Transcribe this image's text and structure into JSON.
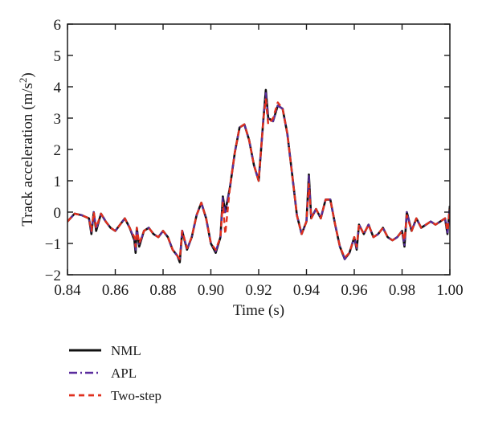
{
  "chart_data": {
    "type": "line",
    "title": "",
    "xlabel": "Time (s)",
    "ylabel": {
      "main": "Track acceleration (m/s",
      "sup": "2",
      "close": ")"
    },
    "xlim": [
      0.84,
      1.0
    ],
    "ylim": [
      -2,
      6
    ],
    "xticks": [
      "0.84",
      "0.86",
      "0.88",
      "0.90",
      "0.92",
      "0.94",
      "0.96",
      "0.98",
      "1.00"
    ],
    "yticks": [
      "−2",
      "−1",
      "0",
      "1",
      "2",
      "3",
      "4",
      "5",
      "6"
    ],
    "xtick_values": [
      0.84,
      0.86,
      0.88,
      0.9,
      0.92,
      0.94,
      0.96,
      0.98,
      1.0
    ],
    "ytick_values": [
      -2,
      -1,
      0,
      1,
      2,
      3,
      4,
      5,
      6
    ],
    "grid": false,
    "legend_position": "below",
    "x": [
      0.84,
      0.843,
      0.846,
      0.849,
      0.85,
      0.851,
      0.852,
      0.854,
      0.856,
      0.858,
      0.86,
      0.862,
      0.864,
      0.866,
      0.868,
      0.8685,
      0.869,
      0.87,
      0.872,
      0.874,
      0.876,
      0.878,
      0.88,
      0.882,
      0.884,
      0.886,
      0.887,
      0.888,
      0.89,
      0.892,
      0.894,
      0.896,
      0.898,
      0.9,
      0.902,
      0.904,
      0.905,
      0.906,
      0.908,
      0.91,
      0.912,
      0.914,
      0.916,
      0.918,
      0.92,
      0.922,
      0.923,
      0.924,
      0.926,
      0.928,
      0.93,
      0.932,
      0.934,
      0.936,
      0.938,
      0.94,
      0.941,
      0.942,
      0.944,
      0.946,
      0.948,
      0.95,
      0.952,
      0.954,
      0.956,
      0.958,
      0.96,
      0.961,
      0.962,
      0.964,
      0.966,
      0.968,
      0.97,
      0.972,
      0.974,
      0.976,
      0.978,
      0.98,
      0.981,
      0.982,
      0.984,
      0.986,
      0.988,
      0.99,
      0.992,
      0.994,
      0.996,
      0.998,
      0.999,
      1.0
    ],
    "series": [
      {
        "name": "NML",
        "color": "#111111",
        "dash": "solid",
        "width": 2.6,
        "values": [
          -0.3,
          -0.05,
          -0.1,
          -0.2,
          -0.7,
          0.0,
          -0.6,
          -0.05,
          -0.3,
          -0.5,
          -0.6,
          -0.4,
          -0.2,
          -0.5,
          -0.9,
          -1.3,
          -0.5,
          -1.1,
          -0.6,
          -0.5,
          -0.7,
          -0.8,
          -0.6,
          -0.8,
          -1.2,
          -1.4,
          -1.6,
          -0.6,
          -1.2,
          -0.8,
          -0.1,
          0.3,
          -0.2,
          -1.0,
          -1.3,
          -0.8,
          0.5,
          0.0,
          0.8,
          1.9,
          2.7,
          2.8,
          2.3,
          1.5,
          1.0,
          3.0,
          3.9,
          3.0,
          2.9,
          3.4,
          3.3,
          2.5,
          1.2,
          -0.1,
          -0.7,
          -0.3,
          1.2,
          -0.2,
          0.1,
          -0.2,
          0.4,
          0.4,
          -0.4,
          -1.1,
          -1.5,
          -1.3,
          -0.8,
          -1.2,
          -0.4,
          -0.7,
          -0.4,
          -0.8,
          -0.7,
          -0.5,
          -0.8,
          -0.9,
          -0.8,
          -0.6,
          -1.1,
          0.0,
          -0.6,
          -0.2,
          -0.5,
          -0.4,
          -0.3,
          -0.4,
          -0.3,
          -0.2,
          -0.7,
          0.2
        ]
      },
      {
        "name": "APL",
        "color": "#5a2d9e",
        "dash": "10 4 2 4",
        "width": 2.2,
        "values": [
          -0.3,
          -0.05,
          -0.1,
          -0.2,
          -0.65,
          0.0,
          -0.55,
          -0.05,
          -0.3,
          -0.5,
          -0.6,
          -0.4,
          -0.2,
          -0.5,
          -0.85,
          -1.2,
          -0.5,
          -1.05,
          -0.6,
          -0.5,
          -0.7,
          -0.8,
          -0.6,
          -0.8,
          -1.2,
          -1.4,
          -1.55,
          -0.55,
          -1.2,
          -0.8,
          -0.1,
          0.3,
          -0.2,
          -1.0,
          -1.25,
          -0.8,
          0.45,
          0.0,
          0.8,
          1.9,
          2.7,
          2.8,
          2.3,
          1.5,
          1.0,
          3.0,
          3.8,
          3.0,
          2.9,
          3.4,
          3.3,
          2.5,
          1.2,
          -0.1,
          -0.7,
          -0.3,
          1.15,
          -0.2,
          0.1,
          -0.2,
          0.4,
          0.4,
          -0.4,
          -1.1,
          -1.5,
          -1.3,
          -0.8,
          -1.15,
          -0.4,
          -0.7,
          -0.4,
          -0.8,
          -0.7,
          -0.5,
          -0.8,
          -0.9,
          -0.8,
          -0.6,
          -1.05,
          0.0,
          -0.6,
          -0.2,
          -0.5,
          -0.4,
          -0.3,
          -0.4,
          -0.3,
          -0.2,
          -0.65,
          0.15
        ]
      },
      {
        "name": "Two-step",
        "color": "#e0301e",
        "dash": "7 5",
        "width": 2.4,
        "values": [
          -0.3,
          -0.05,
          -0.1,
          -0.2,
          -0.6,
          0.0,
          -0.5,
          -0.05,
          -0.3,
          -0.5,
          -0.6,
          -0.4,
          -0.2,
          -0.5,
          -0.8,
          -1.1,
          -0.5,
          -1.0,
          -0.6,
          -0.5,
          -0.7,
          -0.8,
          -0.6,
          -0.8,
          -1.2,
          -1.4,
          -1.5,
          -0.6,
          -1.15,
          -0.8,
          -0.1,
          0.3,
          -0.2,
          -1.0,
          -1.2,
          -0.8,
          0.3,
          -0.7,
          0.8,
          1.9,
          2.7,
          2.8,
          2.3,
          1.5,
          1.0,
          3.0,
          3.6,
          2.8,
          3.0,
          3.5,
          3.3,
          2.5,
          1.2,
          -0.1,
          -0.7,
          -0.3,
          0.9,
          -0.2,
          0.1,
          -0.2,
          0.4,
          0.4,
          -0.4,
          -1.1,
          -1.45,
          -1.3,
          -0.8,
          -1.1,
          -0.4,
          -0.7,
          -0.4,
          -0.8,
          -0.7,
          -0.5,
          -0.8,
          -0.9,
          -0.8,
          -0.6,
          -0.9,
          -0.1,
          -0.6,
          -0.2,
          -0.5,
          -0.4,
          -0.3,
          -0.4,
          -0.3,
          -0.2,
          -0.6,
          0.1
        ]
      }
    ]
  }
}
